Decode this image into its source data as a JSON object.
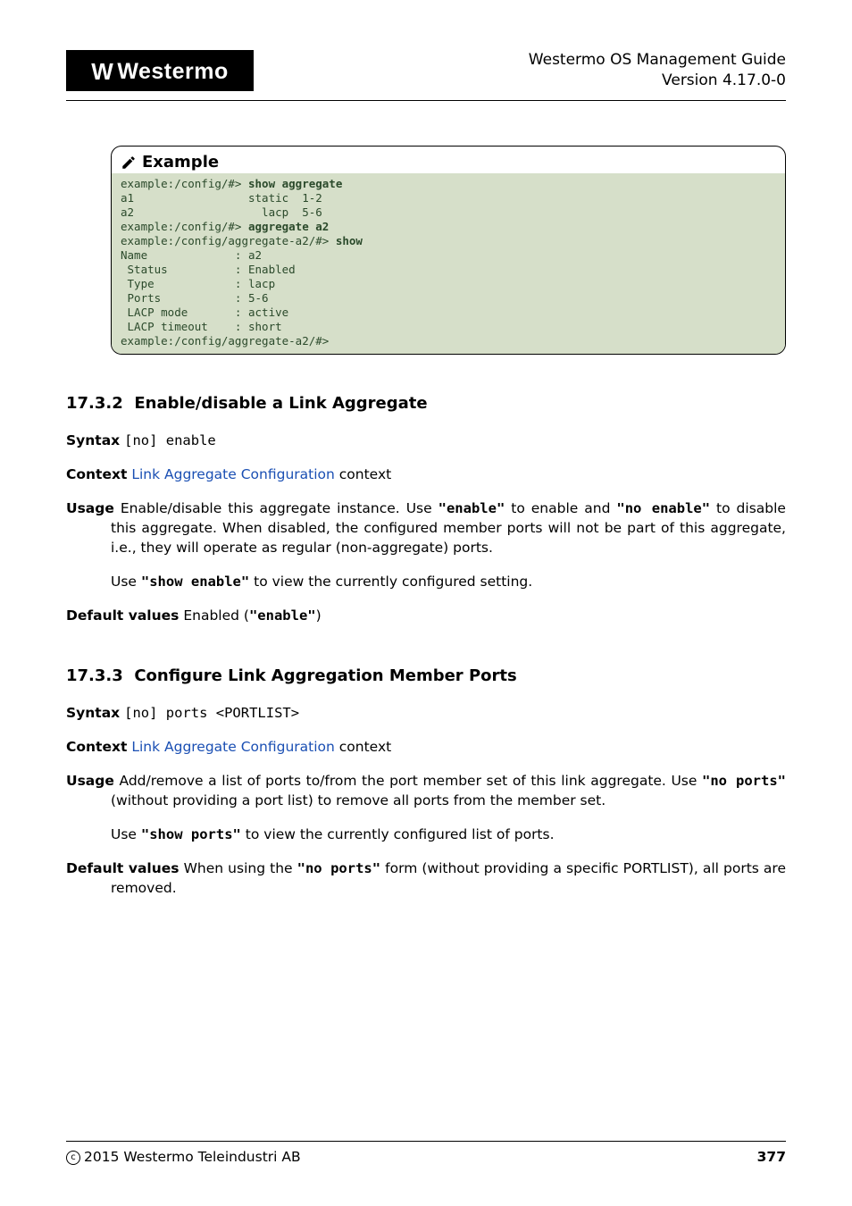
{
  "header": {
    "logo_text": "Westermo",
    "doc_title": "Westermo OS Management Guide",
    "doc_version": "Version 4.17.0-0"
  },
  "example": {
    "title": "Example",
    "lines": [
      {
        "prompt": "example:/config/#> ",
        "cmd": "show aggregate"
      },
      {
        "text": "a1                 static  1-2"
      },
      {
        "text": "a2                   lacp  5-6"
      },
      {
        "prompt": "example:/config/#> ",
        "cmd": "aggregate a2"
      },
      {
        "prompt": "example:/config/aggregate-a2/#> ",
        "cmd": "show"
      },
      {
        "text": "Name             : a2"
      },
      {
        "text": " Status          : Enabled"
      },
      {
        "text": " Type            : lacp"
      },
      {
        "text": " Ports           : 5-6"
      },
      {
        "text": " LACP mode       : active"
      },
      {
        "text": " LACP timeout    : short"
      },
      {
        "prompt": "example:/config/aggregate-a2/#>",
        "cmd": ""
      }
    ],
    "colors": {
      "background": "#d6dfc9",
      "text": "#2b4a2b"
    }
  },
  "sections": {
    "s1": {
      "number": "17.3.2",
      "title": "Enable/disable a Link Aggregate",
      "syntax_label": "Syntax",
      "syntax_value": "[no] enable",
      "context_label": "Context",
      "context_link": "Link Aggregate Configuration",
      "context_suffix": " context",
      "usage_label": "Usage",
      "usage_1a": "Enable/disable this aggregate instance. Use ",
      "usage_cmd1": "\"enable\"",
      "usage_1b": " to enable and ",
      "usage_cmd2": "\"no enable\"",
      "usage_1c": " to disable this aggregate. When disabled, the configured member ports will not be part of this aggregate, i.e., they will operate as regular (non-aggregate) ports.",
      "usage_2a": "Use ",
      "usage_cmd3": "\"show enable\"",
      "usage_2b": " to view the currently configured setting.",
      "default_label": "Default values",
      "default_1a": "Enabled (",
      "default_cmd": "\"enable\"",
      "default_1b": ")"
    },
    "s2": {
      "number": "17.3.3",
      "title": "Configure Link Aggregation Member Ports",
      "syntax_label": "Syntax",
      "syntax_value": "[no] ports <PORTLIST>",
      "context_label": "Context",
      "context_link": "Link Aggregate Configuration",
      "context_suffix": " context",
      "usage_label": "Usage",
      "usage_1a": "Add/remove a list of ports to/from the port member set of this link aggregate. Use ",
      "usage_cmd1": "\"no ports\"",
      "usage_1b": " (without providing a port list) to remove all ports from the member set.",
      "usage_2a": "Use ",
      "usage_cmd2": "\"show ports\"",
      "usage_2b": " to view the currently configured list of ports.",
      "default_label": "Default values",
      "default_1a": "When using the ",
      "default_cmd": "\"no ports\"",
      "default_1b": " form (without providing a specific PORTLIST), all ports are removed."
    }
  },
  "footer": {
    "copyright": "2015 Westermo Teleindustri AB",
    "page": "377"
  }
}
